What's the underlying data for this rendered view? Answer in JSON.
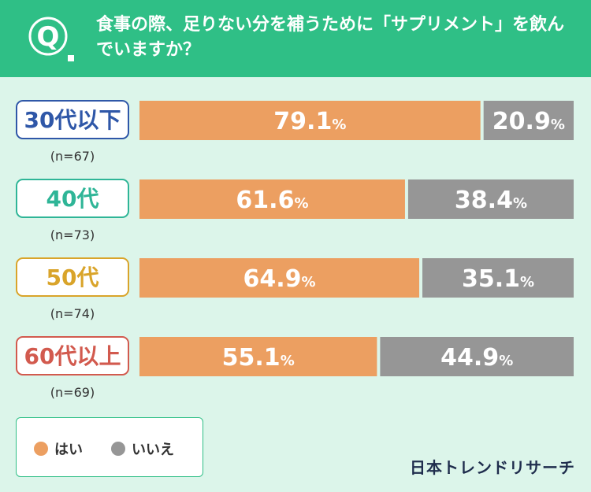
{
  "question": {
    "mark": "Q",
    "text": "食事の際、足りない分を補うために「サプリメント」を飲んでいますか？"
  },
  "colors": {
    "yes": "#ec9f61",
    "no": "#969696",
    "header": "#2fbf86"
  },
  "chart_data": {
    "type": "bar",
    "orientation": "horizontal-stacked-100",
    "categories": [
      "30代以下",
      "40代",
      "50代",
      "60代以上"
    ],
    "sample_sizes": [
      "(n=67)",
      "(n=73)",
      "(n=74)",
      "(n=69)"
    ],
    "category_colors": [
      "#2f57a8",
      "#2fb597",
      "#d9a42a",
      "#d25a4e"
    ],
    "series": [
      {
        "name": "はい",
        "values": [
          79.1,
          61.6,
          64.9,
          55.1
        ]
      },
      {
        "name": "いいえ",
        "values": [
          20.9,
          38.4,
          35.1,
          44.9
        ]
      }
    ],
    "value_labels": [
      [
        "79.1",
        "61.6",
        "64.9",
        "55.1"
      ],
      [
        "20.9",
        "38.4",
        "35.1",
        "44.9"
      ]
    ],
    "unit": "%",
    "xlim": [
      0,
      100
    ],
    "grid": false,
    "legend_position": "bottom-left"
  },
  "legend": {
    "items": [
      {
        "label": "はい",
        "color": "#ec9f61"
      },
      {
        "label": "いいえ",
        "color": "#969696"
      }
    ]
  },
  "brand": {
    "name": "日本トレンドリサーチ"
  }
}
